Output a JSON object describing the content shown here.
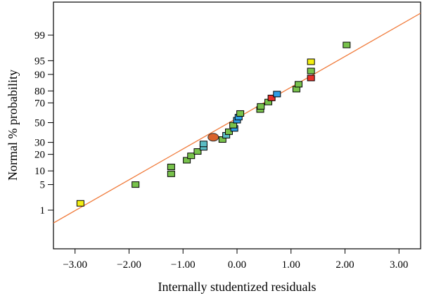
{
  "chart_data": {
    "type": "scatter",
    "title": "",
    "xlabel": "Internally studentized residuals",
    "ylabel": "Normal % probability",
    "xlim": [
      -3.4,
      3.4
    ],
    "x_ticks": [
      -3,
      -2,
      -1,
      0,
      1,
      2,
      3
    ],
    "x_tick_labels": [
      "−3.00",
      "−2.00",
      "−1.00",
      "0.00",
      "1.00",
      "2.00",
      "3.00"
    ],
    "y_scale": "normal-probability",
    "y_ticks": [
      1,
      5,
      10,
      20,
      30,
      50,
      70,
      80,
      90,
      95,
      99
    ],
    "y_tick_labels": [
      "1",
      "5",
      "10",
      "20",
      "30",
      "50",
      "70",
      "80",
      "90",
      "95",
      "99"
    ],
    "reference_line": {
      "x": [
        -3.4,
        3.4
      ],
      "y": [
        0.38,
        99.82
      ],
      "color": "#f07a3a"
    },
    "colors": {
      "green": "#78c24c",
      "yellow": "#f2ee12",
      "red": "#e8312a",
      "blue": "#2e9ee6",
      "teal": "#5bbcc4",
      "orange_circle": "#d9622b"
    },
    "points": [
      {
        "x": -2.9,
        "y": 1.6,
        "color": "yellow"
      },
      {
        "x": -1.88,
        "y": 5.0,
        "color": "green"
      },
      {
        "x": -1.22,
        "y": 8.7,
        "color": "green"
      },
      {
        "x": -1.22,
        "y": 12.0,
        "color": "green"
      },
      {
        "x": -0.93,
        "y": 15.9,
        "color": "green"
      },
      {
        "x": -0.85,
        "y": 18.9,
        "color": "green"
      },
      {
        "x": -0.73,
        "y": 22.2,
        "color": "green"
      },
      {
        "x": -0.62,
        "y": 25.6,
        "color": "teal"
      },
      {
        "x": -0.62,
        "y": 28.6,
        "color": "teal"
      },
      {
        "x": -0.44,
        "y": 34.9,
        "color": "orange_circle",
        "shape": "circle"
      },
      {
        "x": -0.27,
        "y": 32.7,
        "color": "green"
      },
      {
        "x": -0.2,
        "y": 36.9,
        "color": "teal"
      },
      {
        "x": -0.15,
        "y": 40.5,
        "color": "green"
      },
      {
        "x": -0.05,
        "y": 43.9,
        "color": "blue"
      },
      {
        "x": -0.07,
        "y": 47.3,
        "color": "green"
      },
      {
        "x": 0.0,
        "y": 52.6,
        "color": "blue"
      },
      {
        "x": 0.03,
        "y": 55.8,
        "color": "blue"
      },
      {
        "x": 0.06,
        "y": 59.6,
        "color": "green"
      },
      {
        "x": 0.43,
        "y": 63.6,
        "color": "green"
      },
      {
        "x": 0.44,
        "y": 66.7,
        "color": "green"
      },
      {
        "x": 0.58,
        "y": 70.8,
        "color": "green"
      },
      {
        "x": 0.64,
        "y": 74.4,
        "color": "red"
      },
      {
        "x": 0.74,
        "y": 77.6,
        "color": "blue"
      },
      {
        "x": 1.1,
        "y": 81.3,
        "color": "green"
      },
      {
        "x": 1.14,
        "y": 84.6,
        "color": "green"
      },
      {
        "x": 1.37,
        "y": 88.2,
        "color": "red"
      },
      {
        "x": 1.37,
        "y": 91.5,
        "color": "green"
      },
      {
        "x": 1.37,
        "y": 94.7,
        "color": "yellow"
      },
      {
        "x": 2.03,
        "y": 98.05,
        "color": "green"
      }
    ]
  }
}
